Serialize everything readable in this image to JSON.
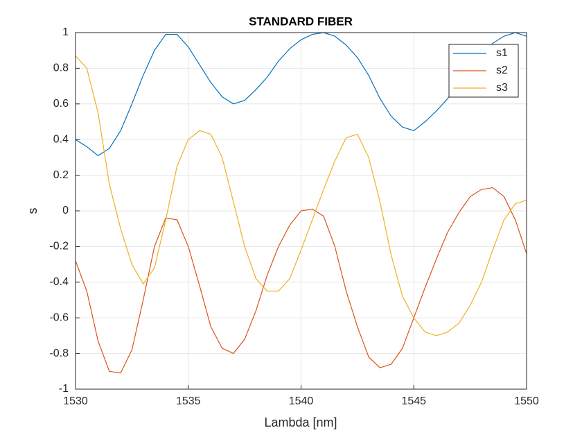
{
  "chart_data": {
    "type": "line",
    "title": "STANDARD FIBER",
    "x_label": "Lambda [nm]",
    "y_label": "s",
    "x": [
      1530,
      1530.5,
      1531,
      1531.5,
      1532,
      1532.5,
      1533,
      1533.5,
      1534,
      1534.5,
      1535,
      1535.5,
      1536,
      1536.5,
      1537,
      1537.5,
      1538,
      1538.5,
      1539,
      1539.5,
      1540,
      1540.5,
      1541,
      1541.5,
      1542,
      1542.5,
      1543,
      1543.5,
      1544,
      1544.5,
      1545,
      1545.5,
      1546,
      1546.5,
      1547,
      1547.5,
      1548,
      1548.5,
      1549,
      1549.5,
      1550
    ],
    "series": [
      {
        "name": "s1",
        "color": "#0072bd",
        "values": [
          0.4,
          0.36,
          0.31,
          0.35,
          0.45,
          0.6,
          0.76,
          0.9,
          0.99,
          0.99,
          0.92,
          0.82,
          0.72,
          0.64,
          0.6,
          0.62,
          0.68,
          0.75,
          0.84,
          0.91,
          0.96,
          0.99,
          1.0,
          0.98,
          0.93,
          0.86,
          0.76,
          0.63,
          0.53,
          0.47,
          0.45,
          0.5,
          0.56,
          0.63,
          0.71,
          0.8,
          0.88,
          0.94,
          0.98,
          1.0,
          0.98
        ]
      },
      {
        "name": "s2",
        "color": "#d95319",
        "values": [
          -0.28,
          -0.45,
          -0.73,
          -0.9,
          -0.91,
          -0.78,
          -0.5,
          -0.2,
          -0.04,
          -0.05,
          -0.2,
          -0.42,
          -0.65,
          -0.77,
          -0.8,
          -0.72,
          -0.56,
          -0.36,
          -0.2,
          -0.08,
          0.0,
          0.01,
          -0.03,
          -0.2,
          -0.45,
          -0.65,
          -0.82,
          -0.88,
          -0.86,
          -0.77,
          -0.6,
          -0.43,
          -0.27,
          -0.12,
          -0.01,
          0.08,
          0.12,
          0.13,
          0.08,
          -0.05,
          -0.24
        ]
      },
      {
        "name": "s3",
        "color": "#edb120",
        "values": [
          0.87,
          0.8,
          0.55,
          0.15,
          -0.1,
          -0.3,
          -0.41,
          -0.32,
          -0.05,
          0.25,
          0.4,
          0.45,
          0.43,
          0.3,
          0.05,
          -0.2,
          -0.38,
          -0.45,
          -0.45,
          -0.38,
          -0.22,
          -0.05,
          0.12,
          0.28,
          0.41,
          0.43,
          0.3,
          0.05,
          -0.25,
          -0.48,
          -0.6,
          -0.68,
          -0.7,
          -0.68,
          -0.63,
          -0.53,
          -0.4,
          -0.22,
          -0.05,
          0.04,
          0.06
        ]
      }
    ],
    "xlim": [
      1530,
      1550
    ],
    "xticks": [
      1530,
      1535,
      1540,
      1545,
      1550
    ],
    "ylim": [
      -1,
      1
    ],
    "yticks": [
      -1,
      -0.8,
      -0.6,
      -0.4,
      -0.2,
      0,
      0.2,
      0.4,
      0.6,
      0.8,
      1
    ],
    "grid": true,
    "legend": "northeast"
  }
}
